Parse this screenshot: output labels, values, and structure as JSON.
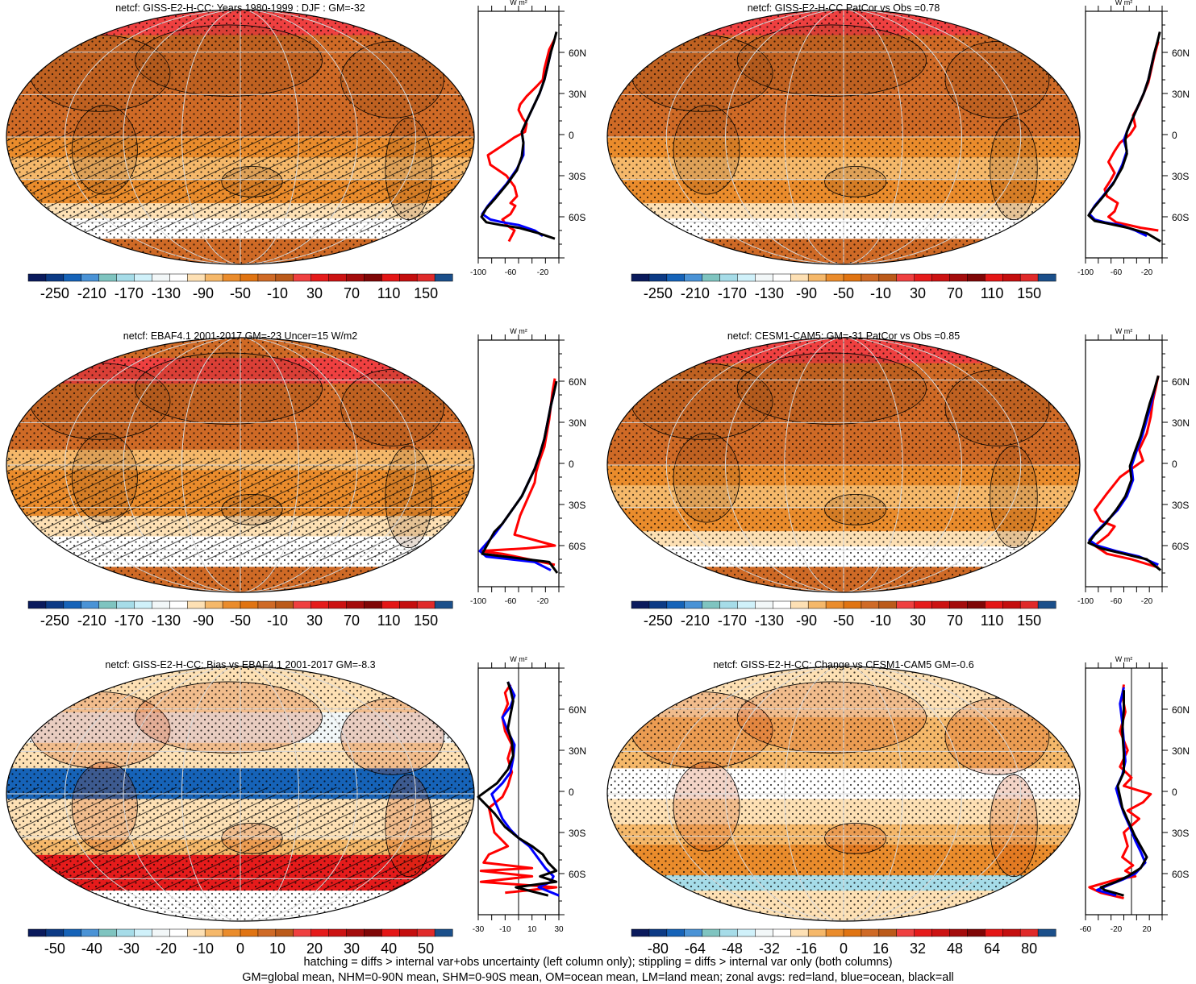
{
  "colorbars": {
    "abs": {
      "colors": [
        "#0a1a5c",
        "#0c3a85",
        "#1663b8",
        "#4a93d6",
        "#7fc4c0",
        "#a6dce8",
        "#d0f1fa",
        "#f2f7f8",
        "#ffffff",
        "#fde0b4",
        "#f5b86a",
        "#ea8c2c",
        "#e07412",
        "#cf6a26",
        "#bb5a1a",
        "#ef4040",
        "#e51b1b",
        "#cc1212",
        "#a40c0c",
        "#7f0606",
        "#e41616",
        "#c40e0e",
        "#e02a2a",
        "#1b4f8a"
      ],
      "labels": [
        "-250",
        "-210",
        "-170",
        "-130",
        "-90",
        "-50",
        "-10",
        "30",
        "70",
        "110",
        "150"
      ]
    },
    "bias": {
      "colors": [
        "#0a1a5c",
        "#0c3a85",
        "#1663b8",
        "#4a93d6",
        "#7fc4c0",
        "#a6dce8",
        "#d0f1fa",
        "#f2f7f8",
        "#ffffff",
        "#fde0b4",
        "#f5b86a",
        "#ea8c2c",
        "#e07412",
        "#cf6a26",
        "#bb5a1a",
        "#ef4040",
        "#e51b1b",
        "#cc1212",
        "#a40c0c",
        "#7f0606",
        "#e41616",
        "#c40e0e",
        "#e02a2a",
        "#1b4f8a"
      ],
      "labels": [
        "-50",
        "-40",
        "-30",
        "-20",
        "-10",
        "0",
        "10",
        "20",
        "30",
        "40",
        "50"
      ]
    },
    "change": {
      "colors": [
        "#0a1a5c",
        "#0c3a85",
        "#1663b8",
        "#4a93d6",
        "#7fc4c0",
        "#a6dce8",
        "#d0f1fa",
        "#f2f7f8",
        "#ffffff",
        "#fde0b4",
        "#f5b86a",
        "#ea8c2c",
        "#e07412",
        "#cf6a26",
        "#bb5a1a",
        "#ef4040",
        "#e51b1b",
        "#cc1212",
        "#a40c0c",
        "#7f0606",
        "#e41616",
        "#c40e0e",
        "#e02a2a",
        "#1b4f8a"
      ],
      "labels": [
        "-80",
        "-64",
        "-48",
        "-32",
        "-16",
        "0",
        "16",
        "32",
        "48",
        "64",
        "80"
      ]
    }
  },
  "chart_data": [
    {
      "type": "line",
      "title": "netcf: GISS-E2-H-CC: Years 1980-1999 : DJF : GM=-32",
      "map_style": "abs",
      "hatching": true,
      "zonal_unit": "W m²",
      "xlim": [
        -100,
        0
      ],
      "xticks": [
        "-100",
        "-60",
        "-20"
      ],
      "ylim": [
        -90,
        90
      ],
      "yticks": [
        "60N",
        "30N",
        "0",
        "30S",
        "60S"
      ],
      "series": [
        {
          "name": "red=land",
          "color": "#ff0000",
          "x": [
            -62,
            -55,
            -65,
            -70,
            -60,
            -54,
            -60,
            -52,
            -55,
            -65,
            -85,
            -88,
            -70,
            -55,
            -42,
            -40,
            -45,
            -50,
            -48,
            -40,
            -28,
            -20,
            -18,
            -15,
            -12,
            -5
          ],
          "y": [
            -78,
            -70,
            -66,
            -62,
            -58,
            -52,
            -50,
            -45,
            -38,
            -30,
            -22,
            -15,
            -8,
            -2,
            2,
            8,
            12,
            18,
            22,
            28,
            35,
            40,
            48,
            55,
            62,
            70
          ]
        },
        {
          "name": "blue=ocean",
          "color": "#0000ff",
          "x": [
            -20,
            -30,
            -50,
            -70,
            -85,
            -95,
            -88,
            -78,
            -65,
            -52,
            -44,
            -44,
            -46,
            -40,
            -32,
            -24,
            -18,
            -14,
            -10
          ],
          "y": [
            -74,
            -70,
            -66,
            -64,
            -62,
            -58,
            -52,
            -45,
            -36,
            -25,
            -15,
            -6,
            2,
            10,
            20,
            30,
            40,
            50,
            60
          ]
        },
        {
          "name": "black=all",
          "color": "#000000",
          "x": [
            -5,
            -25,
            -50,
            -72,
            -90,
            -96,
            -90,
            -78,
            -64,
            -52,
            -46,
            -44,
            -46,
            -40,
            -32,
            -24,
            -18,
            -14,
            -10,
            -6,
            -3
          ],
          "y": [
            -76,
            -72,
            -68,
            -66,
            -64,
            -60,
            -54,
            -46,
            -36,
            -26,
            -16,
            -6,
            2,
            10,
            20,
            30,
            40,
            50,
            60,
            68,
            75
          ]
        }
      ]
    },
    {
      "type": "line",
      "title": "netcf: GISS-E2-H-CC PatCor vs Obs =0.78",
      "map_style": "abs",
      "hatching": false,
      "zonal_unit": "W m²",
      "xlim": [
        -100,
        0
      ],
      "xticks": [
        "-100",
        "-60",
        "-20"
      ],
      "ylim": [
        -90,
        90
      ],
      "yticks": [
        "60N",
        "30N",
        "0",
        "30S",
        "60S"
      ],
      "series": [
        {
          "name": "red=land",
          "color": "#ff0000",
          "x": [
            -5,
            -28,
            -60,
            -70,
            -62,
            -58,
            -72,
            -75,
            -68,
            -62,
            -70,
            -62,
            -55,
            -42,
            -35,
            -38,
            -30,
            -24,
            -18,
            -14,
            -10,
            -5
          ],
          "y": [
            -70,
            -68,
            -64,
            -60,
            -56,
            -50,
            -45,
            -40,
            -34,
            -28,
            -20,
            -12,
            -6,
            0,
            6,
            14,
            22,
            30,
            38,
            48,
            58,
            68
          ]
        },
        {
          "name": "blue=ocean",
          "color": "#0000ff",
          "x": [
            -20,
            -35,
            -55,
            -75,
            -88,
            -95,
            -88,
            -76,
            -62,
            -52,
            -46,
            -50,
            -46,
            -40,
            -32,
            -24,
            -18,
            -14,
            -10
          ],
          "y": [
            -74,
            -70,
            -66,
            -64,
            -62,
            -58,
            -52,
            -44,
            -34,
            -22,
            -12,
            -4,
            2,
            10,
            20,
            30,
            40,
            50,
            60
          ]
        },
        {
          "name": "black=all",
          "color": "#000000",
          "x": [
            -2,
            -20,
            -45,
            -70,
            -88,
            -96,
            -90,
            -78,
            -64,
            -52,
            -46,
            -48,
            -46,
            -40,
            -32,
            -24,
            -18,
            -14,
            -10,
            -6,
            -3
          ],
          "y": [
            -78,
            -72,
            -68,
            -65,
            -63,
            -59,
            -54,
            -46,
            -36,
            -24,
            -14,
            -4,
            2,
            10,
            20,
            30,
            40,
            50,
            60,
            68,
            75
          ]
        }
      ]
    },
    {
      "type": "line",
      "title": "netcf: EBAF4.1 2001-2017 GM=-23 Uncer=15 W/m2",
      "map_style": "abs",
      "hatching": true,
      "zonal_unit": "W m²",
      "xlim": [
        -100,
        0
      ],
      "xticks": [
        "-100",
        "-60",
        "-20"
      ],
      "ylim": [
        -90,
        90
      ],
      "yticks": [
        "60N",
        "30N",
        "0",
        "30S",
        "60S"
      ],
      "series": [
        {
          "name": "red=land",
          "color": "#ff0000",
          "x": [
            -5,
            -70,
            -98,
            -40,
            -5,
            -55,
            -52,
            -48,
            -42,
            -36,
            -30,
            -28,
            -24,
            -18,
            -15,
            -12,
            -10,
            -8,
            -5
          ],
          "y": [
            -74,
            -66,
            -64,
            -62,
            -60,
            -52,
            -46,
            -38,
            -30,
            -22,
            -14,
            -6,
            2,
            12,
            22,
            32,
            42,
            52,
            62
          ]
        },
        {
          "name": "blue=ocean",
          "color": "#0000ff",
          "x": [
            -10,
            -30,
            -90,
            -98,
            -80,
            -70,
            -58,
            -46,
            -38,
            -30,
            -24,
            -18,
            -14,
            -10,
            -6
          ],
          "y": [
            -78,
            -72,
            -68,
            -64,
            -52,
            -44,
            -34,
            -24,
            -14,
            -4,
            6,
            18,
            30,
            42,
            52
          ]
        },
        {
          "name": "black=all",
          "color": "#000000",
          "x": [
            -2,
            -12,
            -40,
            -95,
            -80,
            -70,
            -58,
            -46,
            -38,
            -30,
            -24,
            -18,
            -14,
            -10,
            -6,
            -3
          ],
          "y": [
            -80,
            -72,
            -70,
            -66,
            -50,
            -44,
            -34,
            -24,
            -14,
            -4,
            6,
            18,
            30,
            42,
            52,
            60
          ]
        }
      ]
    },
    {
      "type": "line",
      "title": "netcf: CESM1-CAM5: GM=-31 PatCor vs Obs =0.85",
      "map_style": "abs",
      "hatching": false,
      "zonal_unit": "W m²",
      "xlim": [
        -100,
        0
      ],
      "xticks": [
        "-100",
        "-60",
        "-20"
      ],
      "ylim": [
        -90,
        90
      ],
      "yticks": [
        "60N",
        "30N",
        "0",
        "30S",
        "60S"
      ],
      "series": [
        {
          "name": "red=land",
          "color": "#ff0000",
          "x": [
            -5,
            -40,
            -72,
            -88,
            -70,
            -62,
            -80,
            -88,
            -72,
            -55,
            -40,
            -25,
            -30,
            -20,
            -15,
            -12,
            -8,
            -5
          ],
          "y": [
            -76,
            -70,
            -66,
            -60,
            -52,
            -46,
            -42,
            -34,
            -22,
            -10,
            -4,
            2,
            10,
            22,
            34,
            46,
            56,
            64
          ]
        },
        {
          "name": "blue=ocean",
          "color": "#0000ff",
          "x": [
            -5,
            -30,
            -60,
            -85,
            -95,
            -86,
            -72,
            -58,
            -46,
            -38,
            -40,
            -34,
            -26,
            -20,
            -14,
            -10
          ],
          "y": [
            -74,
            -68,
            -64,
            -60,
            -56,
            -50,
            -42,
            -34,
            -24,
            -12,
            -2,
            8,
            20,
            32,
            44,
            54
          ]
        },
        {
          "name": "black=all",
          "color": "#000000",
          "x": [
            -2,
            -20,
            -50,
            -80,
            -96,
            -88,
            -74,
            -60,
            -48,
            -40,
            -42,
            -36,
            -28,
            -22,
            -16,
            -10,
            -5
          ],
          "y": [
            -78,
            -70,
            -66,
            -62,
            -58,
            -52,
            -44,
            -34,
            -24,
            -12,
            -2,
            8,
            20,
            32,
            44,
            54,
            64
          ]
        }
      ]
    },
    {
      "type": "line",
      "title": "netcf: GISS-E2-H-CC: Bias vs EBAF4.1 2001-2017 GM=-8.3",
      "map_style": "bias",
      "hatching": true,
      "zonal_unit": "W m²",
      "xlim": [
        -30,
        30
      ],
      "xticks": [
        "-30",
        "-10",
        "10",
        "30"
      ],
      "ylim": [
        -90,
        90
      ],
      "yticks": [
        "60N",
        "30N",
        "0",
        "30S",
        "60S"
      ],
      "series": [
        {
          "name": "red=land",
          "color": "#ff0000",
          "x": [
            -10,
            28,
            -28,
            10,
            -28,
            10,
            -26,
            -22,
            -8,
            -18,
            -22,
            -12,
            -8,
            -5,
            -8,
            -5,
            -10,
            -12,
            -8,
            -10,
            -6
          ],
          "y": [
            -74,
            -70,
            -66,
            -62,
            -58,
            -56,
            -52,
            -46,
            -40,
            -30,
            -12,
            -4,
            4,
            14,
            24,
            34,
            44,
            54,
            64,
            72,
            78
          ]
        },
        {
          "name": "blue=ocean",
          "color": "#0000ff",
          "x": [
            30,
            15,
            24,
            26,
            20,
            14,
            8,
            0,
            -6,
            -12,
            -20,
            -12,
            -6,
            -4,
            -3,
            -8,
            -12,
            -6,
            -3,
            -6,
            -8
          ],
          "y": [
            -76,
            -70,
            -66,
            -62,
            -56,
            -48,
            -40,
            -34,
            -28,
            -20,
            -2,
            6,
            14,
            24,
            34,
            44,
            54,
            62,
            70,
            76,
            80
          ]
        },
        {
          "name": "black=all",
          "color": "#000000",
          "x": [
            22,
            -2,
            28,
            16,
            28,
            22,
            18,
            10,
            0,
            -10,
            -18,
            -30,
            -16,
            -8,
            -4,
            -5,
            -8,
            -6,
            -4,
            -6,
            -8
          ],
          "y": [
            -76,
            -70,
            -66,
            -62,
            -58,
            -52,
            -46,
            -40,
            -34,
            -26,
            -16,
            -4,
            6,
            16,
            26,
            36,
            46,
            56,
            66,
            74,
            80
          ]
        }
      ]
    },
    {
      "type": "line",
      "title": "netcf: GISS-E2-H-CC: Change vs CESM1-CAM5 GM=-0.6",
      "map_style": "change",
      "hatching": false,
      "zonal_unit": "W m²",
      "xlim": [
        -60,
        40
      ],
      "xticks": [
        "-60",
        "-20",
        "20"
      ],
      "ylim": [
        -90,
        90
      ],
      "yticks": [
        "60N",
        "30N",
        "0",
        "30S",
        "60S"
      ],
      "series": [
        {
          "name": "red=land",
          "color": "#ff0000",
          "x": [
            -10,
            -40,
            -55,
            -30,
            -18,
            5,
            -8,
            2,
            -12,
            -5,
            -10,
            10,
            -5,
            15,
            25,
            -10,
            0,
            -15,
            -5,
            -15,
            -8,
            -12,
            -10
          ],
          "y": [
            -78,
            -74,
            -70,
            -66,
            -64,
            -62,
            -58,
            -54,
            -48,
            -40,
            -30,
            -20,
            -14,
            -8,
            -2,
            4,
            10,
            18,
            30,
            44,
            58,
            70,
            78
          ]
        },
        {
          "name": "blue=ocean",
          "color": "#0000ff",
          "x": [
            -20,
            -45,
            -28,
            -10,
            5,
            18,
            12,
            5,
            -2,
            -10,
            -15,
            -20,
            -12,
            -8,
            -10,
            -12,
            -15,
            -10
          ],
          "y": [
            -76,
            -72,
            -68,
            -64,
            -60,
            -52,
            -44,
            -36,
            -26,
            -16,
            -8,
            2,
            12,
            22,
            36,
            50,
            64,
            76
          ]
        },
        {
          "name": "black=all",
          "color": "#000000",
          "x": [
            -10,
            -35,
            -40,
            -20,
            -5,
            12,
            20,
            12,
            4,
            -4,
            -12,
            -15,
            -18,
            -10,
            -10,
            -12,
            -10,
            -10
          ],
          "y": [
            -76,
            -72,
            -70,
            -66,
            -62,
            -56,
            -48,
            -40,
            -32,
            -22,
            -12,
            -4,
            4,
            14,
            28,
            44,
            60,
            74
          ]
        }
      ]
    }
  ],
  "footer": {
    "line1": "hatching = diffs > internal var+obs uncertainty (left column only); stippling = diffs > internal var only (both columns)",
    "line2": "GM=global mean, NHM=0-90N mean, SHM=0-90S mean, OM=ocean mean, LM=land mean; zonal avgs: red=land, blue=ocean, black=all"
  }
}
